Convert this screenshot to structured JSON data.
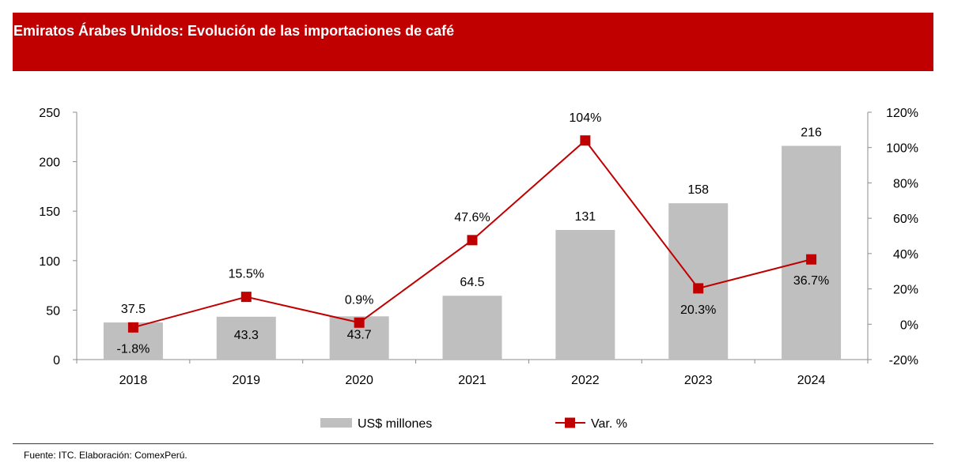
{
  "header": {
    "title": "Emiratos Árabes Unidos: Evolución de las importaciones de café"
  },
  "footer": {
    "source": "Fuente: ITC. Elaboración: ComexPerú."
  },
  "colors": {
    "header_bg": "#c00000",
    "bars": "#bfbfbf",
    "line": "#c00000"
  },
  "chart_data": {
    "type": "bar+line",
    "categories": [
      "2018",
      "2019",
      "2020",
      "2021",
      "2022",
      "2023",
      "2024"
    ],
    "series": [
      {
        "name": "US$ millones",
        "type": "bar",
        "axis": "left",
        "values": [
          37.5,
          43.3,
          43.7,
          64.5,
          131,
          158,
          216
        ],
        "labels": [
          "37.5",
          "43.3",
          "43.7",
          "64.5",
          "131",
          "158",
          "216"
        ]
      },
      {
        "name": "Var. %",
        "type": "line",
        "axis": "right",
        "values": [
          -1.8,
          15.5,
          0.9,
          47.6,
          104,
          20.3,
          36.7
        ],
        "labels": [
          "-1.8%",
          "15.5%",
          "0.9%",
          "47.6%",
          "104%",
          "20.3%",
          "36.7%"
        ]
      }
    ],
    "y_left": {
      "range": [
        0,
        250
      ],
      "ticks": [
        "0",
        "50",
        "100",
        "150",
        "200",
        "250"
      ]
    },
    "y_right": {
      "range": [
        -20,
        120
      ],
      "ticks": [
        "-20%",
        "0%",
        "20%",
        "40%",
        "60%",
        "80%",
        "100%",
        "120%"
      ]
    },
    "grid": false,
    "legend_position": "bottom"
  }
}
